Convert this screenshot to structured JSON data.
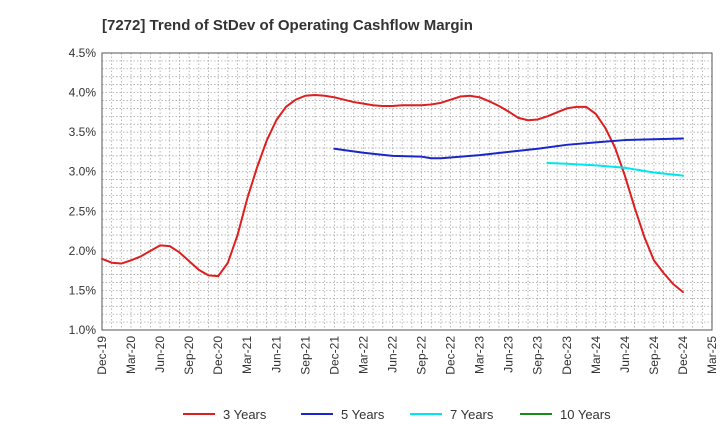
{
  "chart_data": {
    "type": "line",
    "title": "[7272]  Trend of StDev of Operating Cashflow Margin",
    "xlabel": "",
    "ylabel": "",
    "x_ticks": [
      "Dec-19",
      "Mar-20",
      "Jun-20",
      "Sep-20",
      "Dec-20",
      "Mar-21",
      "Jun-21",
      "Sep-21",
      "Dec-21",
      "Mar-22",
      "Jun-22",
      "Sep-22",
      "Dec-22",
      "Mar-23",
      "Jun-23",
      "Sep-23",
      "Dec-23",
      "Mar-24",
      "Jun-24",
      "Sep-24",
      "Dec-24",
      "Mar-25"
    ],
    "y_ticks": [
      "1.0%",
      "1.5%",
      "2.0%",
      "2.5%",
      "3.0%",
      "3.5%",
      "4.0%",
      "4.5%"
    ],
    "ylim": [
      1.0,
      4.5
    ],
    "grid": true,
    "legend_position": "bottom",
    "series": [
      {
        "name": "3 Years",
        "color": "#dd1f1f",
        "x": [
          "Dec-19",
          "Jan-20",
          "Feb-20",
          "Mar-20",
          "Apr-20",
          "May-20",
          "Jun-20",
          "Jul-20",
          "Aug-20",
          "Sep-20",
          "Oct-20",
          "Nov-20",
          "Dec-20",
          "Jan-21",
          "Feb-21",
          "Mar-21",
          "Apr-21",
          "May-21",
          "Jun-21",
          "Jul-21",
          "Aug-21",
          "Sep-21",
          "Oct-21",
          "Nov-21",
          "Dec-21",
          "Jan-22",
          "Feb-22",
          "Mar-22",
          "Apr-22",
          "May-22",
          "Jun-22",
          "Jul-22",
          "Aug-22",
          "Sep-22",
          "Oct-22",
          "Nov-22",
          "Dec-22",
          "Jan-23",
          "Feb-23",
          "Mar-23",
          "Apr-23",
          "May-23",
          "Jun-23",
          "Jul-23",
          "Aug-23",
          "Sep-23",
          "Oct-23",
          "Nov-23",
          "Dec-23",
          "Jan-24",
          "Feb-24",
          "Mar-24",
          "Apr-24",
          "May-24",
          "Jun-24",
          "Jul-24",
          "Aug-24",
          "Sep-24",
          "Oct-24",
          "Nov-24",
          "Dec-24"
        ],
        "values": [
          1.9,
          1.85,
          1.84,
          1.88,
          1.93,
          2.0,
          2.07,
          2.06,
          1.98,
          1.87,
          1.76,
          1.69,
          1.68,
          1.85,
          2.2,
          2.66,
          3.05,
          3.39,
          3.65,
          3.82,
          3.91,
          3.96,
          3.97,
          3.96,
          3.94,
          3.91,
          3.88,
          3.86,
          3.84,
          3.83,
          3.83,
          3.84,
          3.84,
          3.84,
          3.85,
          3.87,
          3.91,
          3.95,
          3.96,
          3.94,
          3.89,
          3.83,
          3.76,
          3.68,
          3.65,
          3.66,
          3.7,
          3.75,
          3.8,
          3.82,
          3.82,
          3.73,
          3.55,
          3.3,
          2.95,
          2.55,
          2.18,
          1.88,
          1.72,
          1.58,
          1.48
        ]
      },
      {
        "name": "5 Years",
        "color": "#1a26c8",
        "x": [
          "Dec-21",
          "Mar-22",
          "Jun-22",
          "Sep-22",
          "Oct-22",
          "Nov-22",
          "Dec-22",
          "Mar-23",
          "Jun-23",
          "Sep-23",
          "Dec-23",
          "Mar-24",
          "Jun-24",
          "Sep-24",
          "Dec-24"
        ],
        "values": [
          3.29,
          3.24,
          3.2,
          3.19,
          3.17,
          3.17,
          3.18,
          3.21,
          3.25,
          3.29,
          3.34,
          3.37,
          3.4,
          3.41,
          3.42
        ]
      },
      {
        "name": "7 Years",
        "color": "#00e5ee",
        "x": [
          "Oct-23",
          "Dec-23",
          "Mar-24",
          "Jun-24",
          "Sep-24",
          "Dec-24"
        ],
        "values": [
          3.11,
          3.1,
          3.08,
          3.05,
          2.99,
          2.95
        ]
      },
      {
        "name": "10 Years",
        "color": "#1a8a1a",
        "x": [],
        "values": []
      }
    ]
  }
}
